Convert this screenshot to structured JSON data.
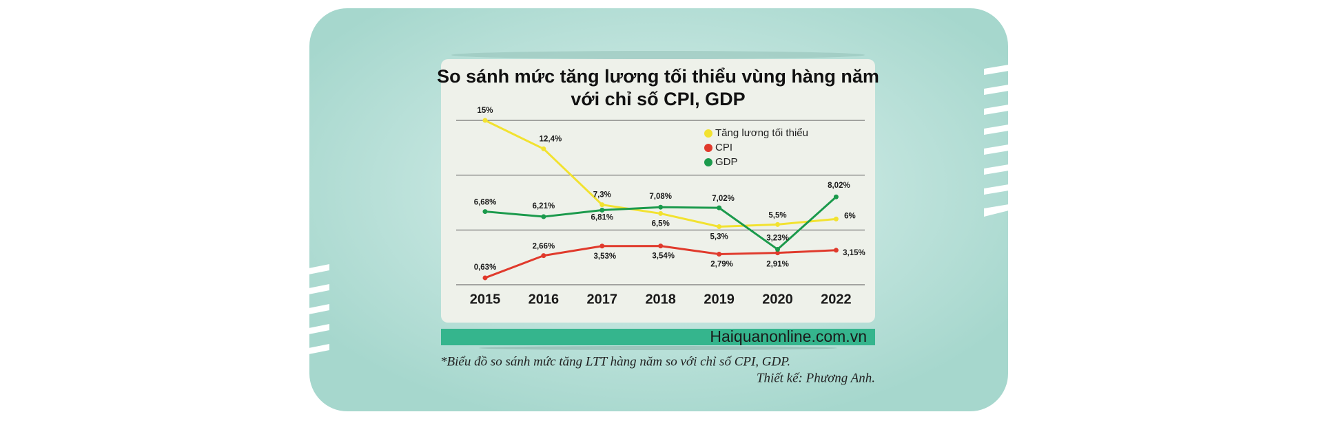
{
  "chart_data": {
    "type": "line",
    "title": [
      "So sánh mức tăng lương tối thiểu vùng hàng năm",
      "với chỉ số CPI, GDP"
    ],
    "categories": [
      "2015",
      "2016",
      "2017",
      "2018",
      "2019",
      "2020",
      "2022"
    ],
    "series": [
      {
        "name": "Tăng lương tối thiểu",
        "color": "#f2e230",
        "values": [
          15,
          12.4,
          7.3,
          6.5,
          5.3,
          5.5,
          6
        ],
        "value_labels": [
          "15%",
          "12,4%",
          "7,3%",
          "6,5%",
          "5,3%",
          "5,5%",
          "6%"
        ]
      },
      {
        "name": "CPI",
        "color": "#e03a2c",
        "values": [
          0.63,
          2.66,
          3.53,
          3.54,
          2.79,
          2.91,
          3.15
        ],
        "value_labels": [
          "0,63%",
          "2,66%",
          "3,53%",
          "3,54%",
          "2,79%",
          "2,91%",
          "3,15%"
        ]
      },
      {
        "name": "GDP",
        "color": "#1b9a4c",
        "values": [
          6.68,
          6.21,
          6.81,
          7.08,
          7.02,
          3.23,
          8.02
        ],
        "value_labels": [
          "6,68%",
          "6,21%",
          "6,81%",
          "7,08%",
          "7,02%",
          "3,23%",
          "8,02%"
        ]
      }
    ],
    "ylim": [
      0,
      15
    ],
    "yticks": [
      0,
      5,
      10,
      15
    ],
    "grid": true,
    "source": "Haiquanonline.com.vn",
    "caption": "*Biểu đồ so sánh mức tăng LTT hàng năm so với chỉ số CPI, GDP.",
    "credit": "Thiết kế: Phương Anh."
  }
}
